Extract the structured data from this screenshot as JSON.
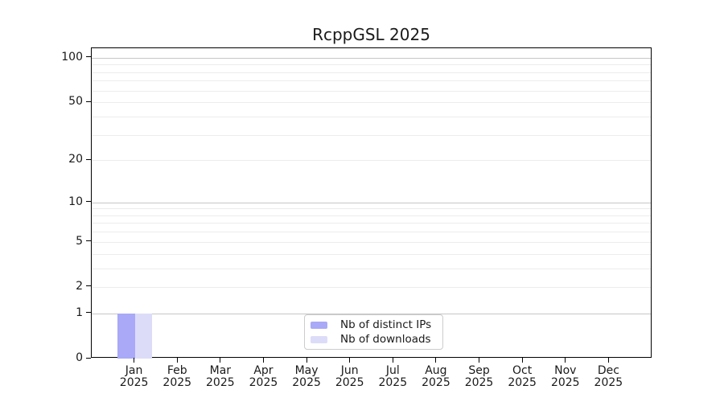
{
  "chart_data": {
    "type": "bar",
    "title": "RcppGSL 2025",
    "categories": [
      "Jan",
      "Feb",
      "Mar",
      "Apr",
      "May",
      "Jun",
      "Jul",
      "Aug",
      "Sep",
      "Oct",
      "Nov",
      "Dec"
    ],
    "x_year_label": "2025",
    "series": [
      {
        "name": "Nb of distinct IPs",
        "color": "#a9a9f7",
        "values": [
          1,
          0,
          0,
          0,
          0,
          0,
          0,
          0,
          0,
          0,
          0,
          0
        ]
      },
      {
        "name": "Nb of downloads",
        "color": "#dcdcf9",
        "values": [
          1,
          0,
          0,
          0,
          0,
          0,
          0,
          0,
          0,
          0,
          0,
          0
        ]
      }
    ],
    "xlabel": "",
    "ylabel": "",
    "y_scale": "log1p",
    "ylim": [
      0,
      116
    ],
    "y_ticks": [
      0,
      1,
      2,
      5,
      10,
      20,
      50,
      100
    ],
    "y_major_gridlines": [
      1,
      10,
      100
    ],
    "y_minor_gridlines": [
      2,
      3,
      4,
      5,
      6,
      7,
      8,
      9,
      20,
      30,
      40,
      50,
      60,
      70,
      80,
      90
    ],
    "grid": true,
    "legend_position": "bottom-center"
  },
  "colors": {
    "background": "#ffffff",
    "spine": "#000000",
    "text": "#1a1a1a",
    "major_grid": "#c6c6c6",
    "minor_grid": "#ececec",
    "bar_distinct_ips": "#a9a9f7",
    "bar_downloads": "#dcdcf9",
    "legend_border": "#cccccc"
  }
}
